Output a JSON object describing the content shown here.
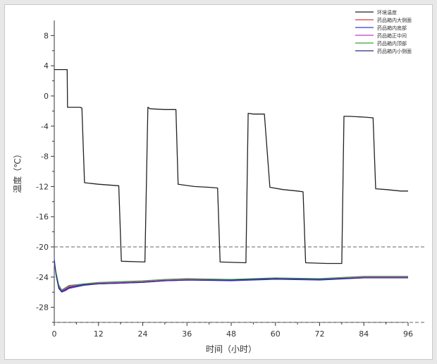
{
  "chart_data": {
    "type": "line",
    "xlabel": "时间（小时）",
    "ylabel": "温度（℃）",
    "xlim": [
      0,
      96
    ],
    "ylim": [
      -30,
      10
    ],
    "xticks": [
      0,
      12,
      24,
      36,
      48,
      60,
      72,
      84,
      96
    ],
    "yticks": [
      8,
      4,
      0,
      -4,
      -8,
      -12,
      -16,
      -20,
      -24,
      -28
    ],
    "grid": false,
    "legend_position": "top-right",
    "reference_lines": [
      -20,
      -30
    ],
    "series": [
      {
        "name": "环境温度",
        "color": "#222222",
        "x": [
          0,
          3.5,
          3.6,
          7,
          7.5,
          8.2,
          12,
          17.5,
          18.2,
          24.6,
          25.4,
          26,
          30,
          33,
          33.6,
          38,
          42,
          44.3,
          45,
          52,
          52.6,
          54,
          57,
          58.5,
          62,
          66,
          67.5,
          68.2,
          74,
          78,
          78.6,
          80,
          84,
          86.5,
          87.2,
          90,
          94,
          96
        ],
        "values": [
          3.5,
          3.5,
          -1.5,
          -1.5,
          -1.6,
          -11.5,
          -11.7,
          -11.9,
          -21.9,
          -22.0,
          -1.5,
          -1.7,
          -1.8,
          -1.8,
          -11.7,
          -12.0,
          -12.1,
          -12.2,
          -22.0,
          -22.1,
          -2.3,
          -2.4,
          -2.4,
          -12.1,
          -12.4,
          -12.6,
          -12.7,
          -22.1,
          -22.2,
          -22.2,
          -2.7,
          -2.7,
          -2.8,
          -2.9,
          -12.3,
          -12.4,
          -12.6,
          -12.6
        ]
      },
      {
        "name": "药品箱内大侧面",
        "color": "#d43a3a",
        "x": [
          0,
          0.5,
          1.2,
          2,
          3,
          4,
          6,
          8,
          12,
          18,
          24,
          30,
          36,
          48,
          60,
          72,
          84,
          96
        ],
        "values": [
          -22.0,
          -23.5,
          -25.3,
          -25.9,
          -25.6,
          -25.3,
          -25.2,
          -25.0,
          -24.8,
          -24.7,
          -24.6,
          -24.4,
          -24.3,
          -24.4,
          -24.2,
          -24.3,
          -24.0,
          -24.0
        ]
      },
      {
        "name": "药品箱内底部",
        "color": "#3a3ad4",
        "x": [
          0,
          0.5,
          1.2,
          2,
          3,
          4,
          6,
          8,
          12,
          18,
          24,
          30,
          36,
          48,
          60,
          72,
          84,
          96
        ],
        "values": [
          -21.5,
          -23.8,
          -25.5,
          -26.0,
          -25.8,
          -25.5,
          -25.3,
          -25.1,
          -24.9,
          -24.8,
          -24.7,
          -24.5,
          -24.4,
          -24.5,
          -24.3,
          -24.4,
          -24.1,
          -24.1
        ]
      },
      {
        "name": "药品箱正中间",
        "color": "#c43ac4",
        "x": [
          0,
          0.5,
          1.2,
          2,
          3,
          4,
          6,
          8,
          12,
          18,
          24,
          30,
          36,
          48,
          60,
          72,
          84,
          96
        ],
        "values": [
          -22.2,
          -23.6,
          -25.2,
          -25.8,
          -25.5,
          -25.2,
          -25.1,
          -24.9,
          -24.8,
          -24.7,
          -24.6,
          -24.4,
          -24.3,
          -24.4,
          -24.2,
          -24.3,
          -24.0,
          -24.0
        ]
      },
      {
        "name": "药品箱内顶部",
        "color": "#3aa03a",
        "x": [
          0,
          0.5,
          1.2,
          2,
          3,
          4,
          6,
          8,
          12,
          18,
          24,
          30,
          36,
          48,
          60,
          72,
          84,
          96
        ],
        "values": [
          -22.4,
          -23.4,
          -25.0,
          -25.7,
          -25.4,
          -25.1,
          -25.0,
          -24.9,
          -24.7,
          -24.6,
          -24.5,
          -24.3,
          -24.2,
          -24.3,
          -24.1,
          -24.2,
          -23.9,
          -23.9
        ]
      },
      {
        "name": "药品箱内小侧面",
        "color": "#2a2a8a",
        "x": [
          0,
          0.5,
          1.2,
          2,
          3,
          4,
          6,
          8,
          12,
          18,
          24,
          30,
          36,
          48,
          60,
          72,
          84,
          96
        ],
        "values": [
          -21.8,
          -23.7,
          -25.4,
          -25.9,
          -25.7,
          -25.4,
          -25.2,
          -25.0,
          -24.9,
          -24.8,
          -24.7,
          -24.5,
          -24.4,
          -24.4,
          -24.2,
          -24.3,
          -24.1,
          -24.1
        ]
      }
    ]
  }
}
